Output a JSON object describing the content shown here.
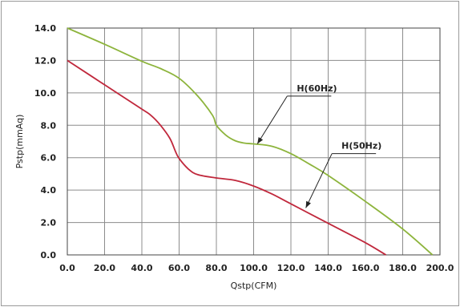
{
  "chart_data": {
    "type": "line",
    "title": "",
    "xlabel": "Qstp(CFM)",
    "ylabel": "Pstp(mmAq)",
    "xlim": [
      0,
      200
    ],
    "ylim": [
      0,
      14
    ],
    "x_ticks": [
      "0.0",
      "20.0",
      "40.0",
      "60.0",
      "80.0",
      "100.0",
      "120.0",
      "140.0",
      "160.0",
      "180.0",
      "200.0"
    ],
    "y_ticks": [
      "0.0",
      "2.0",
      "4.0",
      "6.0",
      "8.0",
      "10.0",
      "12.0",
      "14.0"
    ],
    "grid": true,
    "series": [
      {
        "name": "H(60Hz)",
        "color": "#8db43c",
        "points": [
          [
            0,
            14.0
          ],
          [
            20,
            13.0
          ],
          [
            40,
            11.95
          ],
          [
            50,
            11.5
          ],
          [
            60,
            10.9
          ],
          [
            70,
            9.8
          ],
          [
            78,
            8.6
          ],
          [
            80,
            8.0
          ],
          [
            85,
            7.4
          ],
          [
            90,
            7.05
          ],
          [
            95,
            6.9
          ],
          [
            100,
            6.85
          ],
          [
            110,
            6.7
          ],
          [
            120,
            6.25
          ],
          [
            130,
            5.6
          ],
          [
            140,
            4.9
          ],
          [
            160,
            3.3
          ],
          [
            180,
            1.6
          ],
          [
            196,
            0.0
          ]
        ]
      },
      {
        "name": "H(50Hz)",
        "color": "#c0283c",
        "points": [
          [
            0,
            12.0
          ],
          [
            20,
            10.5
          ],
          [
            40,
            9.0
          ],
          [
            45,
            8.6
          ],
          [
            50,
            8.0
          ],
          [
            55,
            7.2
          ],
          [
            58,
            6.4
          ],
          [
            60,
            5.95
          ],
          [
            65,
            5.3
          ],
          [
            70,
            4.95
          ],
          [
            80,
            4.75
          ],
          [
            90,
            4.6
          ],
          [
            100,
            4.25
          ],
          [
            110,
            3.75
          ],
          [
            120,
            3.15
          ],
          [
            140,
            1.95
          ],
          [
            160,
            0.75
          ],
          [
            171,
            0.0
          ]
        ]
      }
    ],
    "annotations": [
      {
        "text": "H(60Hz)",
        "series": 0,
        "target": [
          102,
          6.85
        ],
        "anchor": [
          118,
          9.8
        ]
      },
      {
        "text": "H(50Hz)",
        "series": 1,
        "target": [
          128,
          2.9
        ],
        "anchor": [
          142,
          6.25
        ]
      }
    ]
  }
}
